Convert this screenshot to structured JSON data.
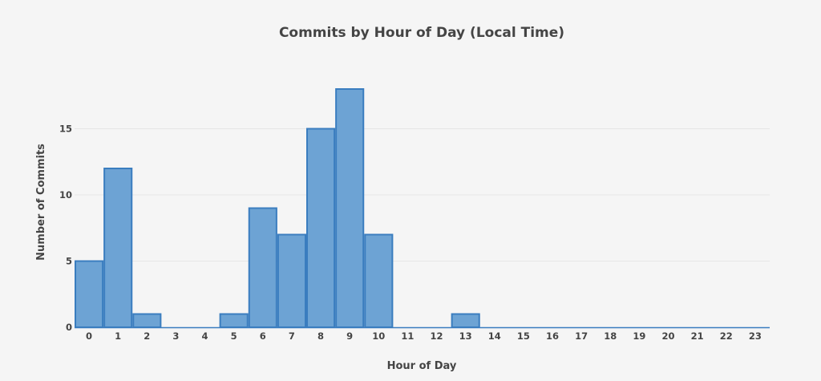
{
  "chart_data": {
    "type": "bar",
    "title": "Commits by Hour of Day (Local Time)",
    "xlabel": "Hour of Day",
    "ylabel": "Number of Commits",
    "categories": [
      "0",
      "1",
      "2",
      "3",
      "4",
      "5",
      "6",
      "7",
      "8",
      "9",
      "10",
      "11",
      "12",
      "13",
      "14",
      "15",
      "16",
      "17",
      "18",
      "19",
      "20",
      "21",
      "22",
      "23"
    ],
    "values": [
      5,
      12,
      1,
      0,
      0,
      1,
      9,
      7,
      15,
      18,
      7,
      0,
      0,
      1,
      0,
      0,
      0,
      0,
      0,
      0,
      0,
      0,
      0,
      0
    ],
    "ylim": [
      0,
      20
    ],
    "yticks": [
      0,
      5,
      10,
      15
    ],
    "grid": true,
    "bar_fill": "#6da3d4",
    "bar_stroke": "#3a7dbf"
  }
}
